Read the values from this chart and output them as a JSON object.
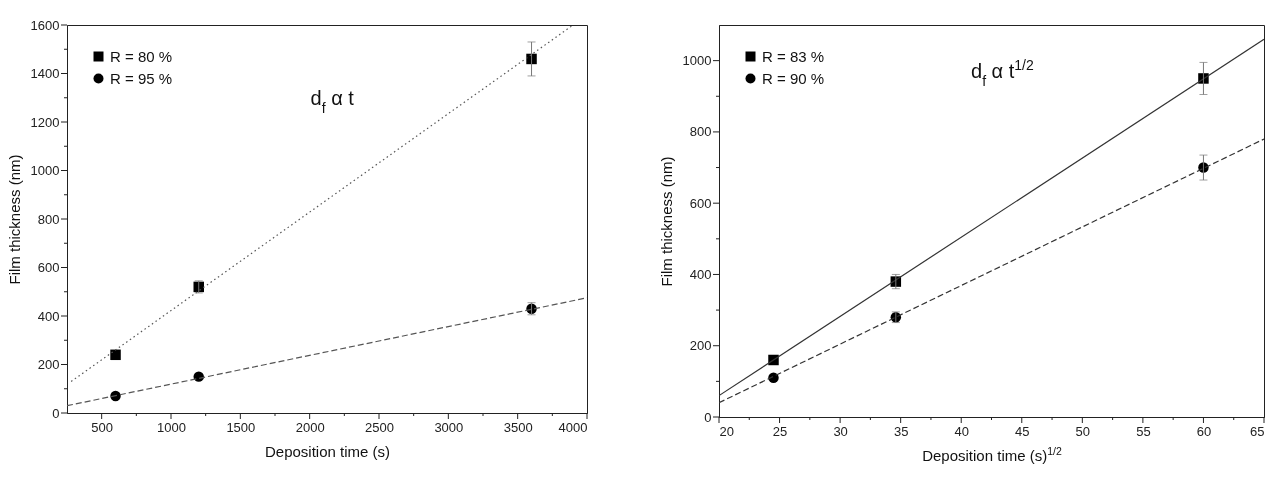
{
  "chart_data": [
    {
      "type": "scatter",
      "xlabel": "Deposition time (s)",
      "ylabel": "Film thickness (nm)",
      "annotations": [
        "d$_{f}$ α t"
      ],
      "legend": "top left",
      "grid": false,
      "xlim": [
        250,
        4000
      ],
      "xticks": [
        500,
        {
          "value": 750,
          "label": null
        },
        1000,
        {
          "value": 1250,
          "label": null
        },
        1500,
        {
          "value": 1750,
          "label": null
        },
        2000,
        {
          "value": 2250,
          "label": null
        },
        2500,
        {
          "value": 2750,
          "label": null
        },
        3000,
        {
          "value": 3250,
          "label": null
        },
        3500,
        {
          "value": 3750,
          "label": null
        },
        4000
      ],
      "ylim": [
        0,
        1600
      ],
      "yticks": [
        0,
        {
          "value": 100,
          "label": null
        },
        200,
        {
          "value": 300,
          "label": null
        },
        400,
        {
          "value": 500,
          "label": null
        },
        600,
        {
          "value": 700,
          "label": null
        },
        800,
        {
          "value": 900,
          "label": null
        },
        1000,
        {
          "value": 1100,
          "label": null
        },
        1200,
        {
          "value": 1300,
          "label": null
        },
        1400,
        {
          "value": 1500,
          "label": null
        },
        1600
      ],
      "series": [
        {
          "name": "R = 80 %",
          "marker": "square",
          "color": "#000000",
          "x": [
            600,
            1200,
            3600
          ],
          "values": [
            240,
            520,
            1460
          ],
          "errors": [
            null,
            25,
            70
          ]
        },
        {
          "name": "R = 95 %",
          "marker": "circle",
          "color": "#000000",
          "x": [
            600,
            1200,
            3600
          ],
          "values": [
            70,
            150,
            430
          ],
          "errors": [
            null,
            null,
            25
          ]
        },
        {
          "type": "line",
          "line_style": "dotted",
          "color": "#555555",
          "x": [
            280,
            3900
          ],
          "values": [
            130,
            1600
          ]
        },
        {
          "type": "line",
          "line_style": "dashed",
          "color": "#555555",
          "x": [
            250,
            4000
          ],
          "values": [
            30,
            475
          ]
        }
      ]
    },
    {
      "type": "scatter",
      "xlabel": "Deposition time  (s)$^{1/2}$",
      "ylabel": "Film thickness (nm)",
      "annotations": [
        "d$_{f}$ α t$^{1/2}$"
      ],
      "legend": "top left",
      "grid": false,
      "xlim": [
        20,
        65
      ],
      "xticks": [
        20,
        {
          "value": 22.5,
          "label": null
        },
        25,
        {
          "value": 27.5,
          "label": null
        },
        30,
        {
          "value": 32.5,
          "label": null
        },
        35,
        {
          "value": 37.5,
          "label": null
        },
        40,
        {
          "value": 42.5,
          "label": null
        },
        45,
        {
          "value": 47.5,
          "label": null
        },
        50,
        {
          "value": 52.5,
          "label": null
        },
        55,
        {
          "value": 57.5,
          "label": null
        },
        60,
        {
          "value": 62.5,
          "label": null
        },
        65
      ],
      "ylim": [
        0,
        1100
      ],
      "yticks": [
        0,
        {
          "value": 100,
          "label": null
        },
        200,
        {
          "value": 300,
          "label": null
        },
        400,
        {
          "value": 500,
          "label": null
        },
        600,
        {
          "value": 700,
          "label": null
        },
        800,
        {
          "value": 900,
          "label": null
        },
        1000
      ],
      "series": [
        {
          "name": "R = 83 %",
          "marker": "square",
          "color": "#000000",
          "x": [
            24.5,
            34.6,
            60
          ],
          "values": [
            160,
            380,
            950
          ],
          "errors": [
            null,
            20,
            45
          ]
        },
        {
          "name": "R = 90 %",
          "marker": "circle",
          "color": "#000000",
          "x": [
            24.5,
            34.6,
            60
          ],
          "values": [
            110,
            280,
            700
          ],
          "errors": [
            null,
            15,
            35
          ]
        },
        {
          "type": "line",
          "line_style": "solid",
          "color": "#333333",
          "x": [
            20,
            65
          ],
          "values": [
            60,
            1060
          ]
        },
        {
          "type": "line",
          "line_style": "dashed",
          "color": "#333333",
          "x": [
            20,
            65
          ],
          "values": [
            40,
            780
          ]
        }
      ]
    }
  ]
}
